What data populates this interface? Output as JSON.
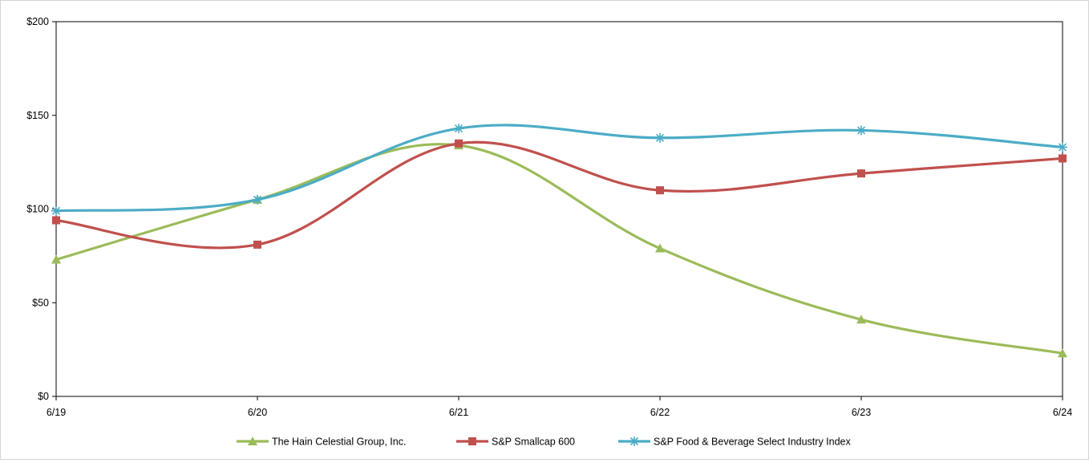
{
  "chart_data": {
    "type": "line",
    "categories": [
      "6/19",
      "6/20",
      "6/21",
      "6/22",
      "6/23",
      "6/24"
    ],
    "y_ticks": [
      "$0",
      "$50",
      "$100",
      "$150",
      "$200"
    ],
    "ylim": [
      0,
      200
    ],
    "grid": false,
    "legend_position": "bottom",
    "series": [
      {
        "name": "The Hain Celestial Group, Inc.",
        "values": [
          73,
          105,
          134,
          79,
          41,
          23
        ],
        "color": "#9BBB59",
        "marker": "triangle"
      },
      {
        "name": "S&P Smallcap 600",
        "values": [
          94,
          81,
          135,
          110,
          119,
          127
        ],
        "color": "#C0504D",
        "marker": "square"
      },
      {
        "name": "S&P Food & Beverage Select Industry Index",
        "values": [
          99,
          105,
          143,
          138,
          142,
          133
        ],
        "color": "#4BACC6",
        "marker": "star"
      }
    ]
  }
}
